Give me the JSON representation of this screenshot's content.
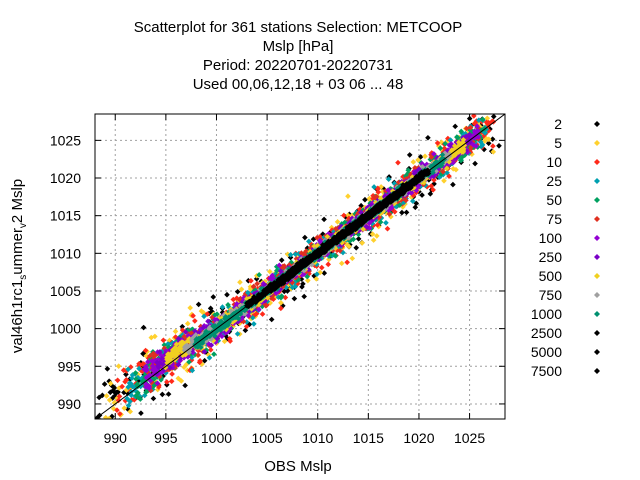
{
  "chart_data": {
    "type": "scatter",
    "title_lines": [
      "Scatterplot for  361 stations Selection: METCOOP",
      "Mslp [hPa]",
      "Period: 20220701-20220731",
      "Used  00,06,12,18  + 03 06 ... 48"
    ],
    "xlabel": "OBS Mslp",
    "ylabel_main": "val46h1rc1",
    "ylabel_sub1": "s",
    "ylabel_mid": "ummer",
    "ylabel_sub2": "v",
    "ylabel_end": "2 Mslp",
    "xlim": [
      988,
      1028.5
    ],
    "ylim": [
      988,
      1028.5
    ],
    "xticks": [
      990,
      995,
      1000,
      1005,
      1010,
      1015,
      1020,
      1025
    ],
    "yticks": [
      990,
      995,
      1000,
      1005,
      1010,
      1015,
      1020,
      1025
    ],
    "grid": true,
    "diagonal_line": true,
    "legend_position": "right",
    "density_classes": [
      {
        "label": "2",
        "color": "#000000",
        "spread": 3.2,
        "range": [
          988,
          1028
        ]
      },
      {
        "label": "5",
        "color": "#ffd12e",
        "spread": 2.6,
        "range": [
          989,
          1027.5
        ]
      },
      {
        "label": "10",
        "color": "#ff2a1a",
        "spread": 2.2,
        "range": [
          990,
          1027.5
        ]
      },
      {
        "label": "25",
        "color": "#00a0b0",
        "spread": 1.8,
        "range": [
          991,
          1027
        ]
      },
      {
        "label": "50",
        "color": "#00a060",
        "spread": 1.5,
        "range": [
          992,
          1026.5
        ]
      },
      {
        "label": "75",
        "color": "#e03020",
        "spread": 1.3,
        "range": [
          993,
          1026
        ]
      },
      {
        "label": "100",
        "color": "#9400d3",
        "spread": 1.15,
        "range": [
          993,
          1026
        ]
      },
      {
        "label": "250",
        "color": "#7a00c8",
        "spread": 0.9,
        "range": [
          994,
          1025
        ]
      },
      {
        "label": "500",
        "color": "#f0d020",
        "spread": 0.7,
        "range": [
          995,
          1024.5
        ]
      },
      {
        "label": "750",
        "color": "#a0a0a0",
        "spread": 0.55,
        "range": [
          997,
          1023
        ]
      },
      {
        "label": "1000",
        "color": "#009070",
        "spread": 0.45,
        "range": [
          998,
          1022.5
        ]
      },
      {
        "label": "2500",
        "color": "#000000",
        "spread": 0.35,
        "range": [
          1003,
          1021
        ]
      },
      {
        "label": "5000",
        "color": "#000000",
        "spread": 0.28,
        "range": [
          1006,
          1020
        ]
      },
      {
        "label": "7500",
        "color": "#000000",
        "spread": 0.22,
        "range": [
          1008,
          1019
        ]
      }
    ]
  }
}
